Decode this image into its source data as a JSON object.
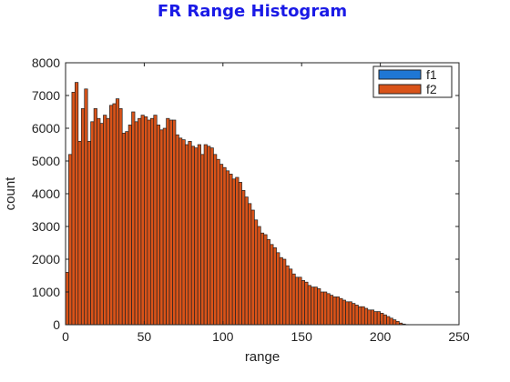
{
  "chart_data": {
    "type": "bar",
    "title": "FR Range Histogram",
    "xlabel": "range",
    "ylabel": "count",
    "xlim": [
      0,
      250
    ],
    "ylim": [
      0,
      8000
    ],
    "xticks": [
      0,
      50,
      100,
      150,
      200,
      250
    ],
    "yticks": [
      0,
      1000,
      2000,
      3000,
      4000,
      5000,
      6000,
      7000,
      8000
    ],
    "grid": false,
    "legend_position": "top-right",
    "bin_width": 2,
    "series": [
      {
        "name": "f1",
        "color": "#1f77d4",
        "bin_start": [],
        "values": []
      },
      {
        "name": "f2",
        "color": "#d95319",
        "bin_start": [
          0,
          2,
          4,
          6,
          8,
          10,
          12,
          14,
          16,
          18,
          20,
          22,
          24,
          26,
          28,
          30,
          32,
          34,
          36,
          38,
          40,
          42,
          44,
          46,
          48,
          50,
          52,
          54,
          56,
          58,
          60,
          62,
          64,
          66,
          68,
          70,
          72,
          74,
          76,
          78,
          80,
          82,
          84,
          86,
          88,
          90,
          92,
          94,
          96,
          98,
          100,
          102,
          104,
          106,
          108,
          110,
          112,
          114,
          116,
          118,
          120,
          122,
          124,
          126,
          128,
          130,
          132,
          134,
          136,
          138,
          140,
          142,
          144,
          146,
          148,
          150,
          152,
          154,
          156,
          158,
          160,
          162,
          164,
          166,
          168,
          170,
          172,
          174,
          176,
          178,
          180,
          182,
          184,
          186,
          188,
          190,
          192,
          194,
          196,
          198,
          200,
          202,
          204,
          206,
          208,
          210,
          212,
          214,
          216,
          218,
          220,
          222,
          224,
          226,
          228,
          230,
          232,
          234,
          236,
          238
        ],
        "values": [
          1600,
          5200,
          7100,
          7400,
          5600,
          6600,
          7200,
          5600,
          6200,
          6600,
          6300,
          6150,
          6400,
          6300,
          6700,
          6750,
          6900,
          6600,
          5850,
          5900,
          6100,
          6500,
          6200,
          6300,
          6400,
          6350,
          6250,
          6300,
          6400,
          6100,
          5950,
          6000,
          6300,
          6250,
          6250,
          5800,
          5700,
          5650,
          5500,
          5600,
          5450,
          5400,
          5500,
          5200,
          5500,
          5450,
          5400,
          5200,
          5050,
          4900,
          4800,
          4700,
          4600,
          4450,
          4500,
          4350,
          4100,
          3900,
          3700,
          3500,
          3200,
          3000,
          2800,
          2750,
          2600,
          2450,
          2350,
          2200,
          2050,
          2000,
          1800,
          1700,
          1550,
          1450,
          1450,
          1350,
          1300,
          1200,
          1150,
          1150,
          1100,
          1000,
          1000,
          950,
          900,
          850,
          850,
          800,
          750,
          700,
          700,
          650,
          600,
          550,
          550,
          500,
          450,
          450,
          400,
          400,
          350,
          300,
          250,
          200,
          150,
          100,
          50,
          20,
          5,
          0,
          0,
          0,
          0,
          0,
          0,
          0,
          0,
          0,
          0,
          0
        ]
      }
    ]
  }
}
